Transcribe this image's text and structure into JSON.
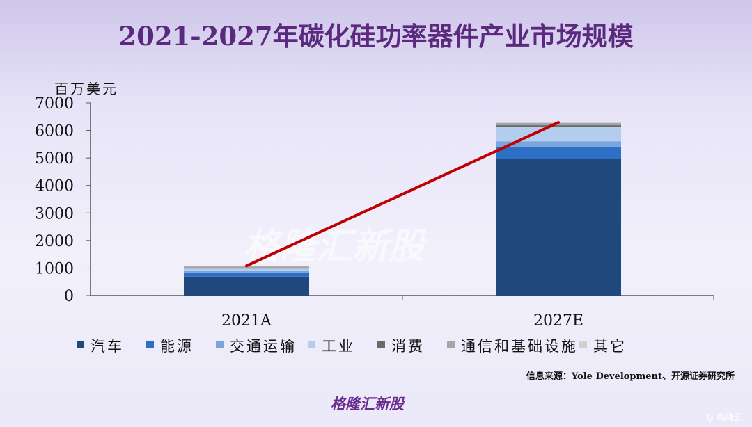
{
  "title": "2021-2027年碳化硅功率器件产业市场规模",
  "watermark": "格隆汇新股",
  "logo": "格隆汇新股",
  "corner_logo": "G 格隆汇",
  "source": "信息来源：Yole Development、开源证券研究所",
  "chart_data": {
    "type": "bar",
    "stacked": true,
    "title": "2021-2027年碳化硅功率器件产业市场规模",
    "ylabel": "百万美元",
    "ylim": [
      0,
      7000
    ],
    "yticks": [
      0,
      1000,
      2000,
      3000,
      4000,
      5000,
      6000,
      7000
    ],
    "categories": [
      "2021A",
      "2027E"
    ],
    "series": [
      {
        "name": "汽车",
        "color": "#1f497d",
        "values": [
          685,
          4975
        ]
      },
      {
        "name": "能源",
        "color": "#2e6fc6",
        "values": [
          155,
          430
        ]
      },
      {
        "name": "交通运输",
        "color": "#79a6de",
        "values": [
          60,
          200
        ]
      },
      {
        "name": "工业",
        "color": "#b4cdef",
        "values": [
          80,
          535
        ]
      },
      {
        "name": "消费",
        "color": "#6b6b6b",
        "values": [
          20,
          50
        ]
      },
      {
        "name": "通信和基础设施",
        "color": "#a6a6a6",
        "values": [
          60,
          80
        ]
      },
      {
        "name": "其它",
        "color": "#d0d0d0",
        "values": [
          20,
          25
        ]
      }
    ],
    "trend_line": {
      "color": "#c00000",
      "values": [
        1080,
        6290
      ]
    },
    "legend": "bottom"
  }
}
